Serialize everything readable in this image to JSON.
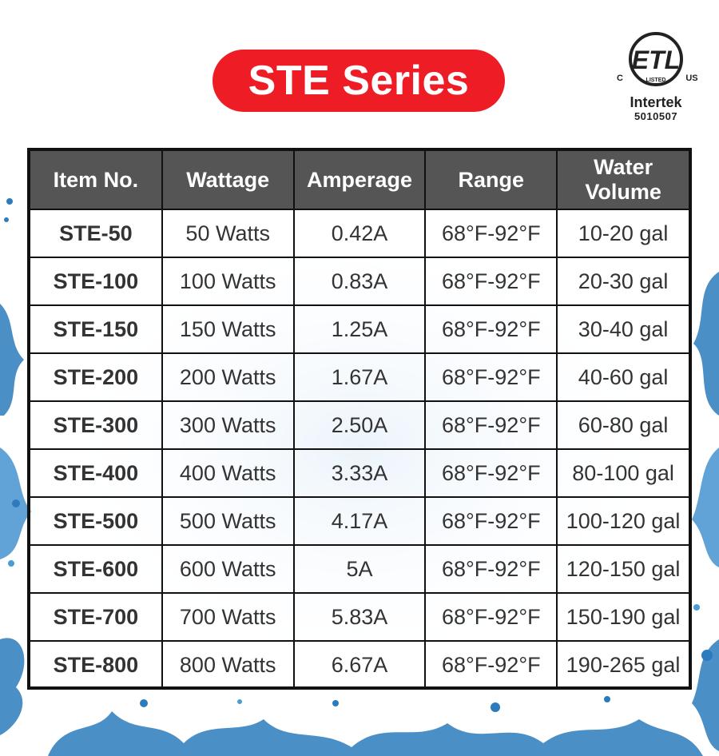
{
  "title": "STE Series",
  "certification": {
    "mark": "ETL",
    "left": "C",
    "right": "US",
    "listed": "LISTED",
    "brand": "Intertek",
    "number": "5010507"
  },
  "colors": {
    "accent_red": "#ee1c25",
    "header_gray": "#555555",
    "water_blue": "#2b7bbd"
  },
  "table": {
    "headers": [
      "Item No.",
      "Wattage",
      "Amperage",
      "Range",
      "Water Volume"
    ],
    "rows": [
      [
        "STE-50",
        "50 Watts",
        "0.42A",
        "68°F-92°F",
        "10-20 gal"
      ],
      [
        "STE-100",
        "100 Watts",
        "0.83A",
        "68°F-92°F",
        "20-30 gal"
      ],
      [
        "STE-150",
        "150 Watts",
        "1.25A",
        "68°F-92°F",
        "30-40 gal"
      ],
      [
        "STE-200",
        "200 Watts",
        "1.67A",
        "68°F-92°F",
        "40-60 gal"
      ],
      [
        "STE-300",
        "300 Watts",
        "2.50A",
        "68°F-92°F",
        "60-80 gal"
      ],
      [
        "STE-400",
        "400 Watts",
        "3.33A",
        "68°F-92°F",
        "80-100 gal"
      ],
      [
        "STE-500",
        "500 Watts",
        "4.17A",
        "68°F-92°F",
        "100-120 gal"
      ],
      [
        "STE-600",
        "600 Watts",
        "5A",
        "68°F-92°F",
        "120-150 gal"
      ],
      [
        "STE-700",
        "700 Watts",
        "5.83A",
        "68°F-92°F",
        "150-190 gal"
      ],
      [
        "STE-800",
        "800 Watts",
        "6.67A",
        "68°F-92°F",
        "190-265 gal"
      ]
    ]
  }
}
